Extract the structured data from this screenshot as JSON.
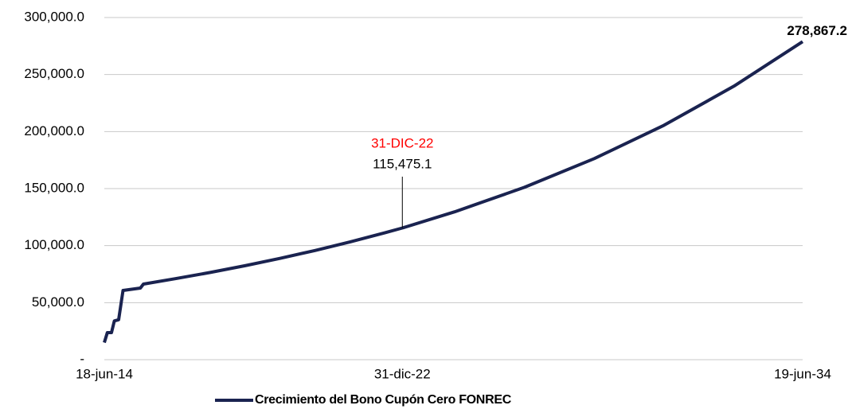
{
  "chart_data": {
    "type": "line",
    "x": [
      "2014-06-18",
      "2014-07-20",
      "2014-09-01",
      "2014-10-01",
      "2014-11-15",
      "2014-12-31",
      "2015-06-30",
      "2015-08-01",
      "2016-06-30",
      "2017-06-30",
      "2018-06-30",
      "2019-06-30",
      "2020-06-30",
      "2021-06-30",
      "2022-06-30",
      "2022-12-31",
      "2024-06-30",
      "2026-06-30",
      "2028-06-30",
      "2030-06-30",
      "2032-06-30",
      "2034-06-19"
    ],
    "series": [
      {
        "name": "Crecimiento del Bono Cupón Cero FONREC",
        "color": "#1a2350",
        "values": [
          15000,
          23700,
          23700,
          34000,
          35000,
          60700,
          62800,
          66300,
          71000,
          76500,
          82400,
          88800,
          95700,
          103200,
          111200,
          115475.1,
          129600,
          151100,
          176300,
          205500,
          239800,
          278867.2
        ]
      }
    ],
    "xlim": [
      "2014-06-18",
      "2034-06-19"
    ],
    "xticks": [
      {
        "value": "2014-06-18",
        "label": "18-jun-14"
      },
      {
        "value": "2022-12-31",
        "label": "31-dic-22"
      },
      {
        "value": "2034-06-19",
        "label": "19-jun-34"
      }
    ],
    "ylim": [
      0,
      300000
    ],
    "yticks": [
      {
        "value": 0,
        "label": "-"
      },
      {
        "value": 50000,
        "label": "50,000.0"
      },
      {
        "value": 100000,
        "label": "100,000.0"
      },
      {
        "value": 150000,
        "label": "150,000.0"
      },
      {
        "value": 200000,
        "label": "200,000.0"
      },
      {
        "value": 250000,
        "label": "250,000.0"
      },
      {
        "value": 300000,
        "label": "300,000.0"
      }
    ],
    "grid": true,
    "legend": "bottom",
    "annotations": [
      {
        "x": "2022-12-31",
        "value": 115475.1,
        "label": "115,475.1",
        "date_label": "31-DIC-22",
        "date_color": "#ff0000"
      },
      {
        "x": "2034-06-19",
        "value": 278867.2,
        "label": "278,867.2",
        "bold": true
      }
    ]
  }
}
